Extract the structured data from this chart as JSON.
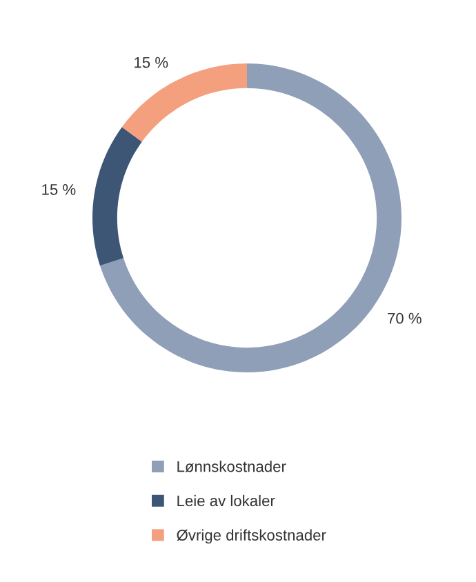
{
  "chart_data": {
    "type": "donut",
    "categories": [
      "Lønnskostnader",
      "Leie av lokaler",
      "Øvrige driftskostnader"
    ],
    "values": [
      70,
      15,
      15
    ],
    "value_labels": [
      "70 %",
      "15 %",
      "15 %"
    ],
    "colors": [
      "#8f9fb8",
      "#3d5675",
      "#f4a07e"
    ],
    "legend": "bottom"
  }
}
